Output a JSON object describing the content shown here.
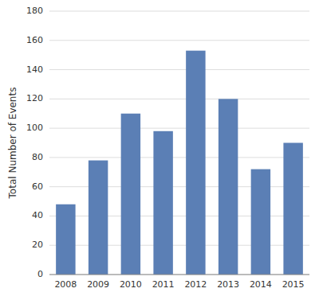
{
  "chart_data": {
    "type": "bar",
    "ylabel": "Total Number of Events",
    "categories": [
      "2008",
      "2009",
      "2010",
      "2011",
      "2012",
      "2013",
      "2014",
      "2015"
    ],
    "values": [
      48,
      78,
      110,
      98,
      153,
      120,
      72,
      90
    ],
    "color": "#5b7fb5",
    "ylim": [
      0,
      180
    ],
    "yticks": [
      0,
      20,
      40,
      60,
      80,
      100,
      120,
      140,
      160,
      180
    ],
    "grid": true
  }
}
